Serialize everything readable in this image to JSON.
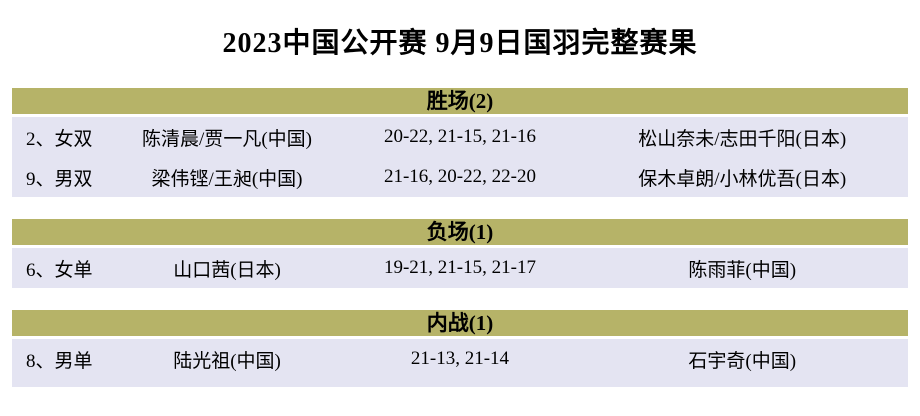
{
  "page": {
    "title": "2023中国公开赛 9月9日国羽完整赛果"
  },
  "colors": {
    "section_header_bg": "#b6b368",
    "row_bg": "#e4e4f2",
    "page_bg": "#ffffff",
    "text": "#000000"
  },
  "sections": [
    {
      "header": "胜场(2)",
      "rows": [
        {
          "no_event": "2、女双",
          "player1": "陈清晨/贾一凡(中国)",
          "score": "20-22, 21-15, 21-16",
          "player2": "松山奈未/志田千阳(日本)"
        },
        {
          "no_event": "9、男双",
          "player1": "梁伟铿/王昶(中国)",
          "score": "21-16, 20-22, 22-20",
          "player2": "保木卓朗/小林优吾(日本)"
        }
      ]
    },
    {
      "header": "负场(1)",
      "rows": [
        {
          "no_event": "6、女单",
          "player1": "山口茜(日本)",
          "score": "19-21, 21-15, 21-17",
          "player2": "陈雨菲(中国)"
        }
      ]
    },
    {
      "header": "内战(1)",
      "rows": [
        {
          "no_event": "8、男单",
          "player1": "陆光祖(中国)",
          "score": "21-13, 21-14",
          "player2": "石宇奇(中国)"
        }
      ]
    }
  ]
}
